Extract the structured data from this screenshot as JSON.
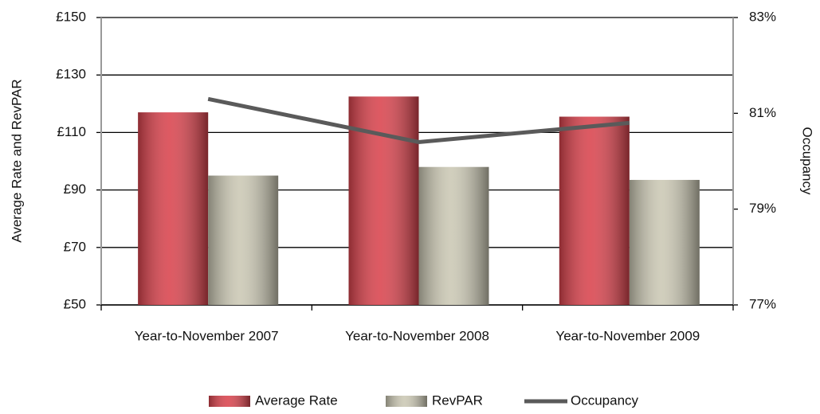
{
  "chart_data": {
    "type": "bar",
    "categories": [
      "Year-to-November 2007",
      "Year-to-November 2008",
      "Year-to-November 2009"
    ],
    "y_label": "Average Rate and RevPAR",
    "y2_label": "Occupancy",
    "series": [
      {
        "name": "Average Rate",
        "color": "#d9434d",
        "values": [
          117,
          122.5,
          115.5
        ]
      },
      {
        "name": "RevPAR",
        "color": "#cbc8b4",
        "values": [
          95,
          98,
          93.5
        ]
      },
      {
        "name": "Occupancy",
        "color": "#5a5a5a",
        "type": "line",
        "axis": "y2",
        "values": [
          81.3,
          80.4,
          80.8
        ]
      }
    ],
    "ylim": [
      50,
      150
    ],
    "yticks": [
      {
        "value": 50,
        "label": "£50"
      },
      {
        "value": 70,
        "label": "£70"
      },
      {
        "value": 90,
        "label": "£90"
      },
      {
        "value": 110,
        "label": "£110"
      },
      {
        "value": 130,
        "label": "£130"
      },
      {
        "value": 150,
        "label": "£150"
      }
    ],
    "y2lim": [
      77,
      83
    ],
    "y2ticks": [
      {
        "value": 77,
        "label": "77%"
      },
      {
        "value": 79,
        "label": "79%"
      },
      {
        "value": 81,
        "label": "81%"
      },
      {
        "value": 83,
        "label": "83%"
      }
    ],
    "grid": true
  }
}
